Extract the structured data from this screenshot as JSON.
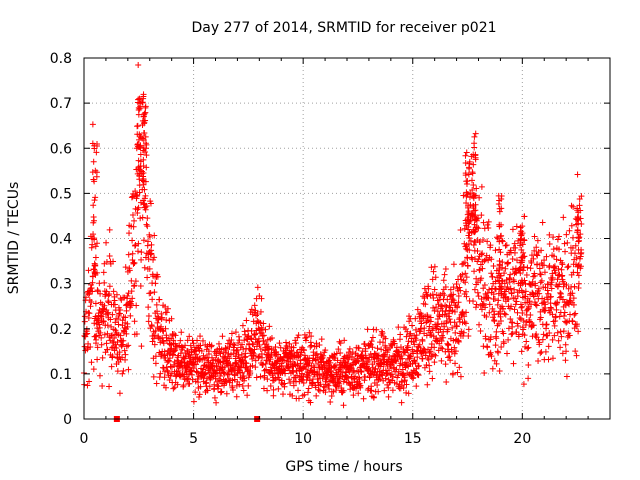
{
  "chart_data": {
    "type": "scatter",
    "title": "Day 277 of 2014, SRMTID for receiver p021",
    "xlabel": "GPS time / hours",
    "ylabel": "SRMTID / TECUs",
    "xlim": [
      0,
      24
    ],
    "ylim": [
      0,
      0.8
    ],
    "x_ticks": [
      0,
      5,
      10,
      15,
      20
    ],
    "x_tick_labels": [
      "0",
      "5",
      "10",
      "15",
      "20"
    ],
    "y_ticks": [
      0,
      0.1,
      0.2,
      0.3,
      0.4,
      0.5,
      0.6,
      0.7,
      0.8
    ],
    "y_tick_labels": [
      "0",
      "0.1",
      "0.2",
      "0.3",
      "0.4",
      "0.5",
      "0.6",
      "0.7",
      "0.8"
    ],
    "grid": true,
    "marker": "plus",
    "color": "#ff0000",
    "series": [
      {
        "name": "SRMTID",
        "profile_x": [
          0,
          0.2,
          0.4,
          0.6,
          0.8,
          1.0,
          1.3,
          1.6,
          1.8,
          2.0,
          2.3,
          2.5,
          2.7,
          2.9,
          3.1,
          3.3,
          3.6,
          4.0,
          4.5,
          5.0,
          5.5,
          6.0,
          6.5,
          7.0,
          7.5,
          7.8,
          8.2,
          8.6,
          9.0,
          9.5,
          10.0,
          10.5,
          11.0,
          11.5,
          12.0,
          12.5,
          13.0,
          13.5,
          14.0,
          14.5,
          15.0,
          15.5,
          16.0,
          16.5,
          17.0,
          17.3,
          17.6,
          17.9,
          18.2,
          18.5,
          18.8,
          19.1,
          19.4,
          19.7,
          20.0,
          20.3,
          20.6,
          20.9,
          21.2,
          21.5,
          21.8,
          22.1,
          22.4,
          22.6
        ],
        "profile_y": [
          0.17,
          0.22,
          0.35,
          0.25,
          0.2,
          0.3,
          0.22,
          0.17,
          0.2,
          0.25,
          0.35,
          0.55,
          0.5,
          0.35,
          0.3,
          0.22,
          0.17,
          0.15,
          0.12,
          0.12,
          0.11,
          0.1,
          0.12,
          0.13,
          0.14,
          0.2,
          0.15,
          0.12,
          0.11,
          0.12,
          0.12,
          0.11,
          0.11,
          0.1,
          0.11,
          0.11,
          0.12,
          0.12,
          0.12,
          0.13,
          0.15,
          0.2,
          0.22,
          0.2,
          0.2,
          0.3,
          0.4,
          0.38,
          0.3,
          0.28,
          0.25,
          0.26,
          0.28,
          0.3,
          0.27,
          0.25,
          0.28,
          0.26,
          0.27,
          0.26,
          0.3,
          0.28,
          0.32,
          0.33
        ],
        "peaks": [
          {
            "x": 0.5,
            "y": 0.68
          },
          {
            "x": 2.5,
            "y": 0.71
          },
          {
            "x": 2.75,
            "y": 0.72
          },
          {
            "x": 17.8,
            "y": 0.64
          },
          {
            "x": 17.5,
            "y": 0.6
          },
          {
            "x": 19.0,
            "y": 0.5
          },
          {
            "x": 20.0,
            "y": 0.45
          },
          {
            "x": 22.6,
            "y": 0.5
          }
        ],
        "points_approx": 2600
      }
    ],
    "ground_markers": [
      {
        "x": 1.5,
        "y": 0
      },
      {
        "x": 7.9,
        "y": 0
      }
    ]
  }
}
